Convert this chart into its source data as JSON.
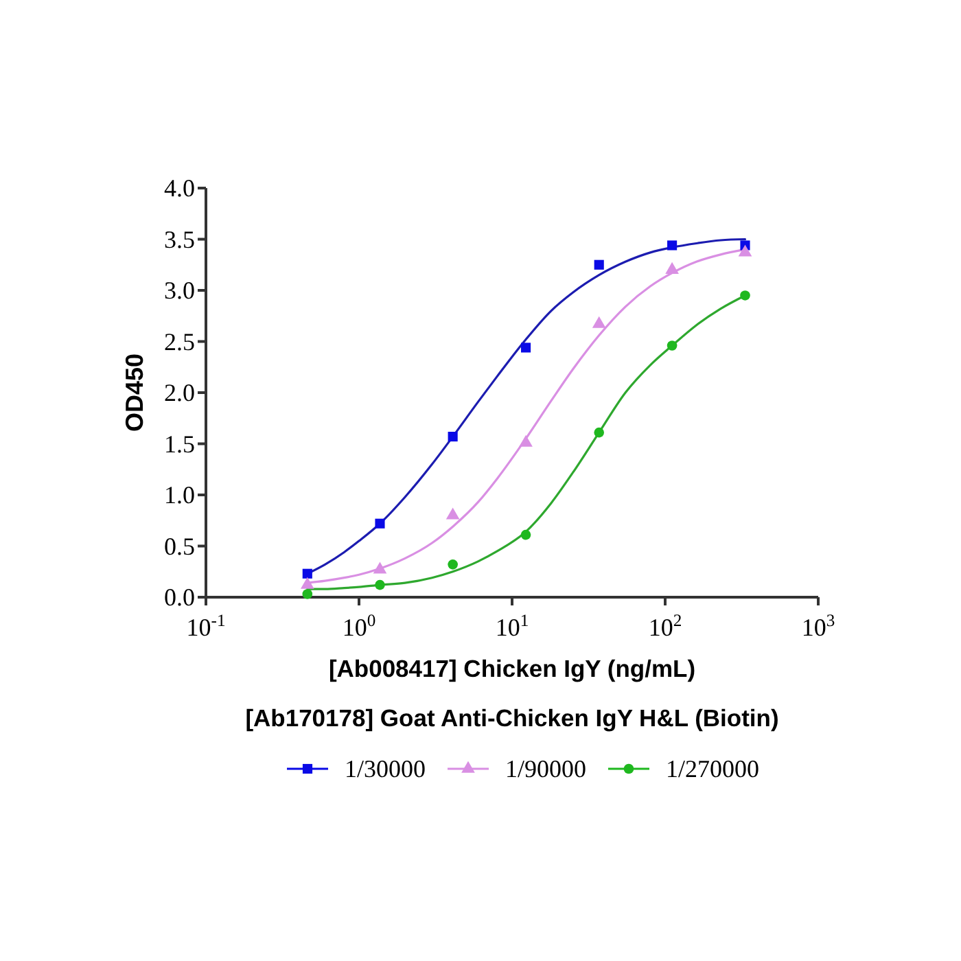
{
  "chart_data": {
    "type": "scatter",
    "xlabel": "[Ab008417] Chicken IgY (ng/mL)",
    "ylabel": "OD450",
    "legend_title": "[Ab170178] Goat Anti-Chicken IgY H&L (Biotin)",
    "x": [
      0.46,
      1.37,
      4.1,
      12.3,
      37,
      111,
      333
    ],
    "series": [
      {
        "name": "1/30000",
        "type": "scatter",
        "marker": "square",
        "color": "#0a0ae6",
        "values": [
          0.23,
          0.72,
          1.57,
          2.44,
          3.25,
          3.44,
          3.44
        ]
      },
      {
        "type": "line",
        "color": "#1c1cb0",
        "x": [
          0.46,
          0.6,
          0.8,
          1,
          1.37,
          2,
          3,
          4.1,
          6,
          8,
          12.3,
          18,
          25,
          37,
          55,
          80,
          111,
          160,
          230,
          333
        ],
        "values": [
          0.23,
          0.32,
          0.44,
          0.55,
          0.72,
          0.98,
          1.3,
          1.57,
          1.91,
          2.16,
          2.52,
          2.8,
          2.98,
          3.15,
          3.28,
          3.37,
          3.42,
          3.46,
          3.49,
          3.5
        ]
      },
      {
        "name": "1/90000",
        "type": "scatter",
        "marker": "triangle",
        "color": "#d98fe3",
        "values": [
          0.12,
          0.27,
          0.8,
          1.51,
          2.67,
          3.2,
          3.37
        ]
      },
      {
        "type": "line",
        "color": "#d98fe3",
        "x": [
          0.46,
          0.6,
          0.8,
          1,
          1.37,
          2,
          3,
          4.1,
          6,
          8,
          12.3,
          18,
          25,
          37,
          55,
          80,
          111,
          160,
          230,
          333
        ],
        "values": [
          0.14,
          0.16,
          0.19,
          0.22,
          0.28,
          0.38,
          0.53,
          0.69,
          0.93,
          1.16,
          1.55,
          1.92,
          2.23,
          2.56,
          2.84,
          3.04,
          3.17,
          3.28,
          3.35,
          3.4
        ]
      },
      {
        "name": "1/270000",
        "type": "scatter",
        "marker": "circle",
        "color": "#1fb81f",
        "values": [
          0.03,
          0.12,
          0.32,
          0.61,
          1.61,
          2.46,
          2.95
        ]
      },
      {
        "type": "line",
        "color": "#2ea82e",
        "x": [
          0.46,
          0.6,
          0.8,
          1,
          1.37,
          2,
          3,
          4.1,
          6,
          8,
          12.3,
          18,
          25,
          37,
          55,
          80,
          111,
          160,
          230,
          333
        ],
        "values": [
          0.08,
          0.08,
          0.09,
          0.1,
          0.12,
          0.14,
          0.19,
          0.25,
          0.35,
          0.45,
          0.64,
          0.92,
          1.22,
          1.61,
          2.0,
          2.27,
          2.46,
          2.66,
          2.82,
          2.95
        ]
      }
    ],
    "xlim": [
      0.1,
      1000
    ],
    "xticks": [
      {
        "value": 0.1,
        "label": "10$^{-1}$"
      },
      {
        "value": 1,
        "label": "10$^{0}$"
      },
      {
        "value": 10,
        "label": "10$^{1}$"
      },
      {
        "value": 100,
        "label": "10$^{2}$"
      },
      {
        "value": 1000,
        "label": "10$^{3}$"
      }
    ],
    "ylim": [
      0,
      4
    ],
    "yticks": [
      {
        "value": 0,
        "label": "0.0"
      },
      {
        "value": 0.5,
        "label": "0.5"
      },
      {
        "value": 1,
        "label": "1.0"
      },
      {
        "value": 1.5,
        "label": "1.5"
      },
      {
        "value": 2,
        "label": "2.0"
      },
      {
        "value": 2.5,
        "label": "2.5"
      },
      {
        "value": 3,
        "label": "3.0"
      },
      {
        "value": 3.5,
        "label": "3.5"
      },
      {
        "value": 4,
        "label": "4.0"
      }
    ],
    "log": "x",
    "legend": "bottom"
  }
}
